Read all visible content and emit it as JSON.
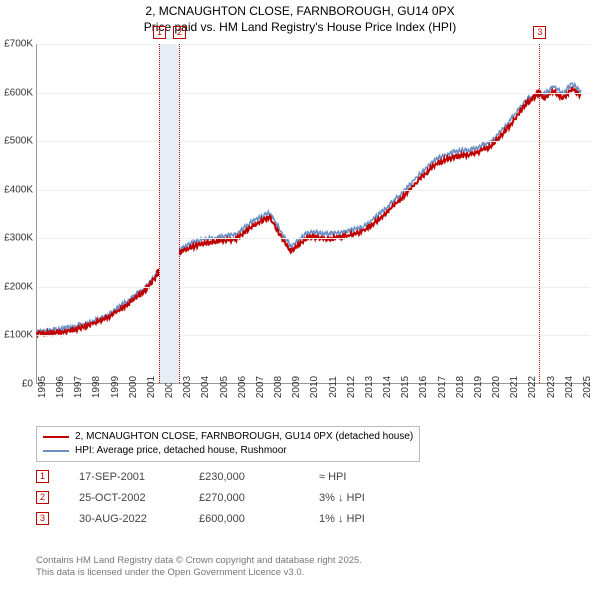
{
  "title_line1": "2, MCNAUGHTON CLOSE, FARNBOROUGH, GU14 0PX",
  "title_line2": "Price paid vs. HM Land Registry's House Price Index (HPI)",
  "chart": {
    "type": "line",
    "background_color": "#ffffff",
    "grid_color": "#eeeeee",
    "axis_color": "#999999",
    "x_min": 1995,
    "x_max": 2025.5,
    "y_min": 0,
    "y_max": 700000,
    "y_ticks": [
      0,
      100000,
      200000,
      300000,
      400000,
      500000,
      600000,
      700000
    ],
    "y_tick_labels": [
      "£0",
      "£100K",
      "£200K",
      "£300K",
      "£400K",
      "£500K",
      "£600K",
      "£700K"
    ],
    "x_ticks": [
      1995,
      1996,
      1997,
      1998,
      1999,
      2000,
      2001,
      2002,
      2003,
      2004,
      2005,
      2006,
      2007,
      2008,
      2009,
      2010,
      2011,
      2012,
      2013,
      2014,
      2015,
      2016,
      2017,
      2018,
      2019,
      2020,
      2021,
      2022,
      2023,
      2024,
      2025
    ],
    "label_fontsize": 10,
    "markers": [
      {
        "n": "1",
        "year": 2001.72,
        "color": "#c00000"
      },
      {
        "n": "2",
        "year": 2002.82,
        "color": "#c00000",
        "band_to": 2001.72
      },
      {
        "n": "3",
        "year": 2022.66,
        "color": "#c00000"
      }
    ],
    "series": [
      {
        "name": "2, MCNAUGHTON CLOSE, FARNBOROUGH, GU14 0PX (detached house)",
        "color": "#c00000",
        "width": 2,
        "points": [
          [
            1995,
            105000
          ],
          [
            1996,
            106000
          ],
          [
            1997,
            112000
          ],
          [
            1998,
            123000
          ],
          [
            1999,
            140000
          ],
          [
            2000,
            165000
          ],
          [
            2001,
            195000
          ],
          [
            2001.72,
            230000
          ],
          [
            2002,
            240000
          ],
          [
            2002.82,
            270000
          ],
          [
            2003,
            275000
          ],
          [
            2004,
            290000
          ],
          [
            2005,
            295000
          ],
          [
            2006,
            300000
          ],
          [
            2007,
            330000
          ],
          [
            2007.8,
            345000
          ],
          [
            2008,
            335000
          ],
          [
            2008.5,
            300000
          ],
          [
            2009,
            275000
          ],
          [
            2009.5,
            290000
          ],
          [
            2010,
            305000
          ],
          [
            2011,
            300000
          ],
          [
            2012,
            305000
          ],
          [
            2013,
            315000
          ],
          [
            2014,
            345000
          ],
          [
            2015,
            380000
          ],
          [
            2016,
            420000
          ],
          [
            2017,
            455000
          ],
          [
            2018,
            470000
          ],
          [
            2019,
            475000
          ],
          [
            2020,
            490000
          ],
          [
            2021,
            530000
          ],
          [
            2022,
            580000
          ],
          [
            2022.66,
            600000
          ],
          [
            2023,
            590000
          ],
          [
            2023.5,
            605000
          ],
          [
            2024,
            590000
          ],
          [
            2024.5,
            610000
          ],
          [
            2025,
            595000
          ]
        ]
      },
      {
        "name": "HPI: Average price, detached house, Rushmoor",
        "color": "#6a8fc5",
        "width": 1.5,
        "points": [
          [
            1995,
            110000
          ],
          [
            1996,
            112000
          ],
          [
            1997,
            118000
          ],
          [
            1998,
            128000
          ],
          [
            1999,
            145000
          ],
          [
            2000,
            172000
          ],
          [
            2001,
            200000
          ],
          [
            2002,
            245000
          ],
          [
            2003,
            282000
          ],
          [
            2004,
            298000
          ],
          [
            2005,
            303000
          ],
          [
            2006,
            310000
          ],
          [
            2007,
            340000
          ],
          [
            2007.8,
            355000
          ],
          [
            2008,
            345000
          ],
          [
            2008.5,
            312000
          ],
          [
            2009,
            285000
          ],
          [
            2009.5,
            300000
          ],
          [
            2010,
            315000
          ],
          [
            2011,
            310000
          ],
          [
            2012,
            315000
          ],
          [
            2013,
            325000
          ],
          [
            2014,
            355000
          ],
          [
            2015,
            390000
          ],
          [
            2016,
            430000
          ],
          [
            2017,
            465000
          ],
          [
            2018,
            480000
          ],
          [
            2019,
            485000
          ],
          [
            2020,
            500000
          ],
          [
            2021,
            540000
          ],
          [
            2022,
            590000
          ],
          [
            2023,
            600000
          ],
          [
            2023.5,
            615000
          ],
          [
            2024,
            600000
          ],
          [
            2024.5,
            620000
          ],
          [
            2025,
            605000
          ]
        ]
      }
    ]
  },
  "legend": [
    {
      "color": "#c00000",
      "label": "2, MCNAUGHTON CLOSE, FARNBOROUGH, GU14 0PX (detached house)"
    },
    {
      "color": "#6a8fc5",
      "label": "HPI: Average price, detached house, Rushmoor"
    }
  ],
  "sales": [
    {
      "n": "1",
      "color": "#c00000",
      "date": "17-SEP-2001",
      "price": "£230,000",
      "hpi": "≈ HPI"
    },
    {
      "n": "2",
      "color": "#c00000",
      "date": "25-OCT-2002",
      "price": "£270,000",
      "hpi": "3% ↓ HPI"
    },
    {
      "n": "3",
      "color": "#c00000",
      "date": "30-AUG-2022",
      "price": "£600,000",
      "hpi": "1% ↓ HPI"
    }
  ],
  "footer_line1": "Contains HM Land Registry data © Crown copyright and database right 2025.",
  "footer_line2": "This data is licensed under the Open Government Licence v3.0."
}
